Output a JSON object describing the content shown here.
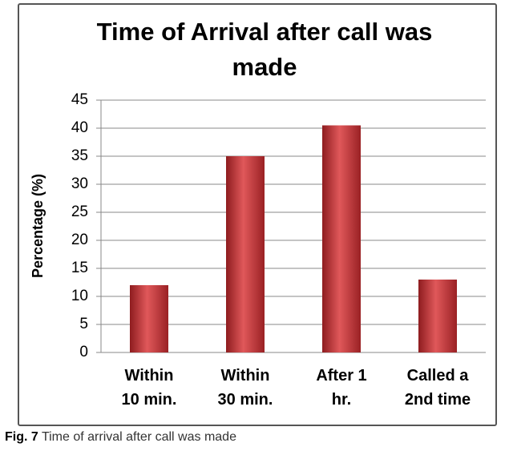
{
  "chart_data": {
    "type": "bar",
    "title": "Time of Arrival after call was made",
    "y_label": "Percentage (%)",
    "categories": [
      "Within\n10 min.",
      "Within\n30 min.",
      "After 1\nhr.",
      "Called a\n2nd time"
    ],
    "values": [
      12,
      35,
      40.5,
      13
    ],
    "color": "#c8393c",
    "ylim": [
      0,
      45
    ],
    "yticks": [
      0,
      5,
      10,
      15,
      20,
      25,
      30,
      35,
      40,
      45
    ],
    "grid": true
  },
  "caption": {
    "label": "Fig. 7",
    "text": "Time of arrival after call was made"
  }
}
